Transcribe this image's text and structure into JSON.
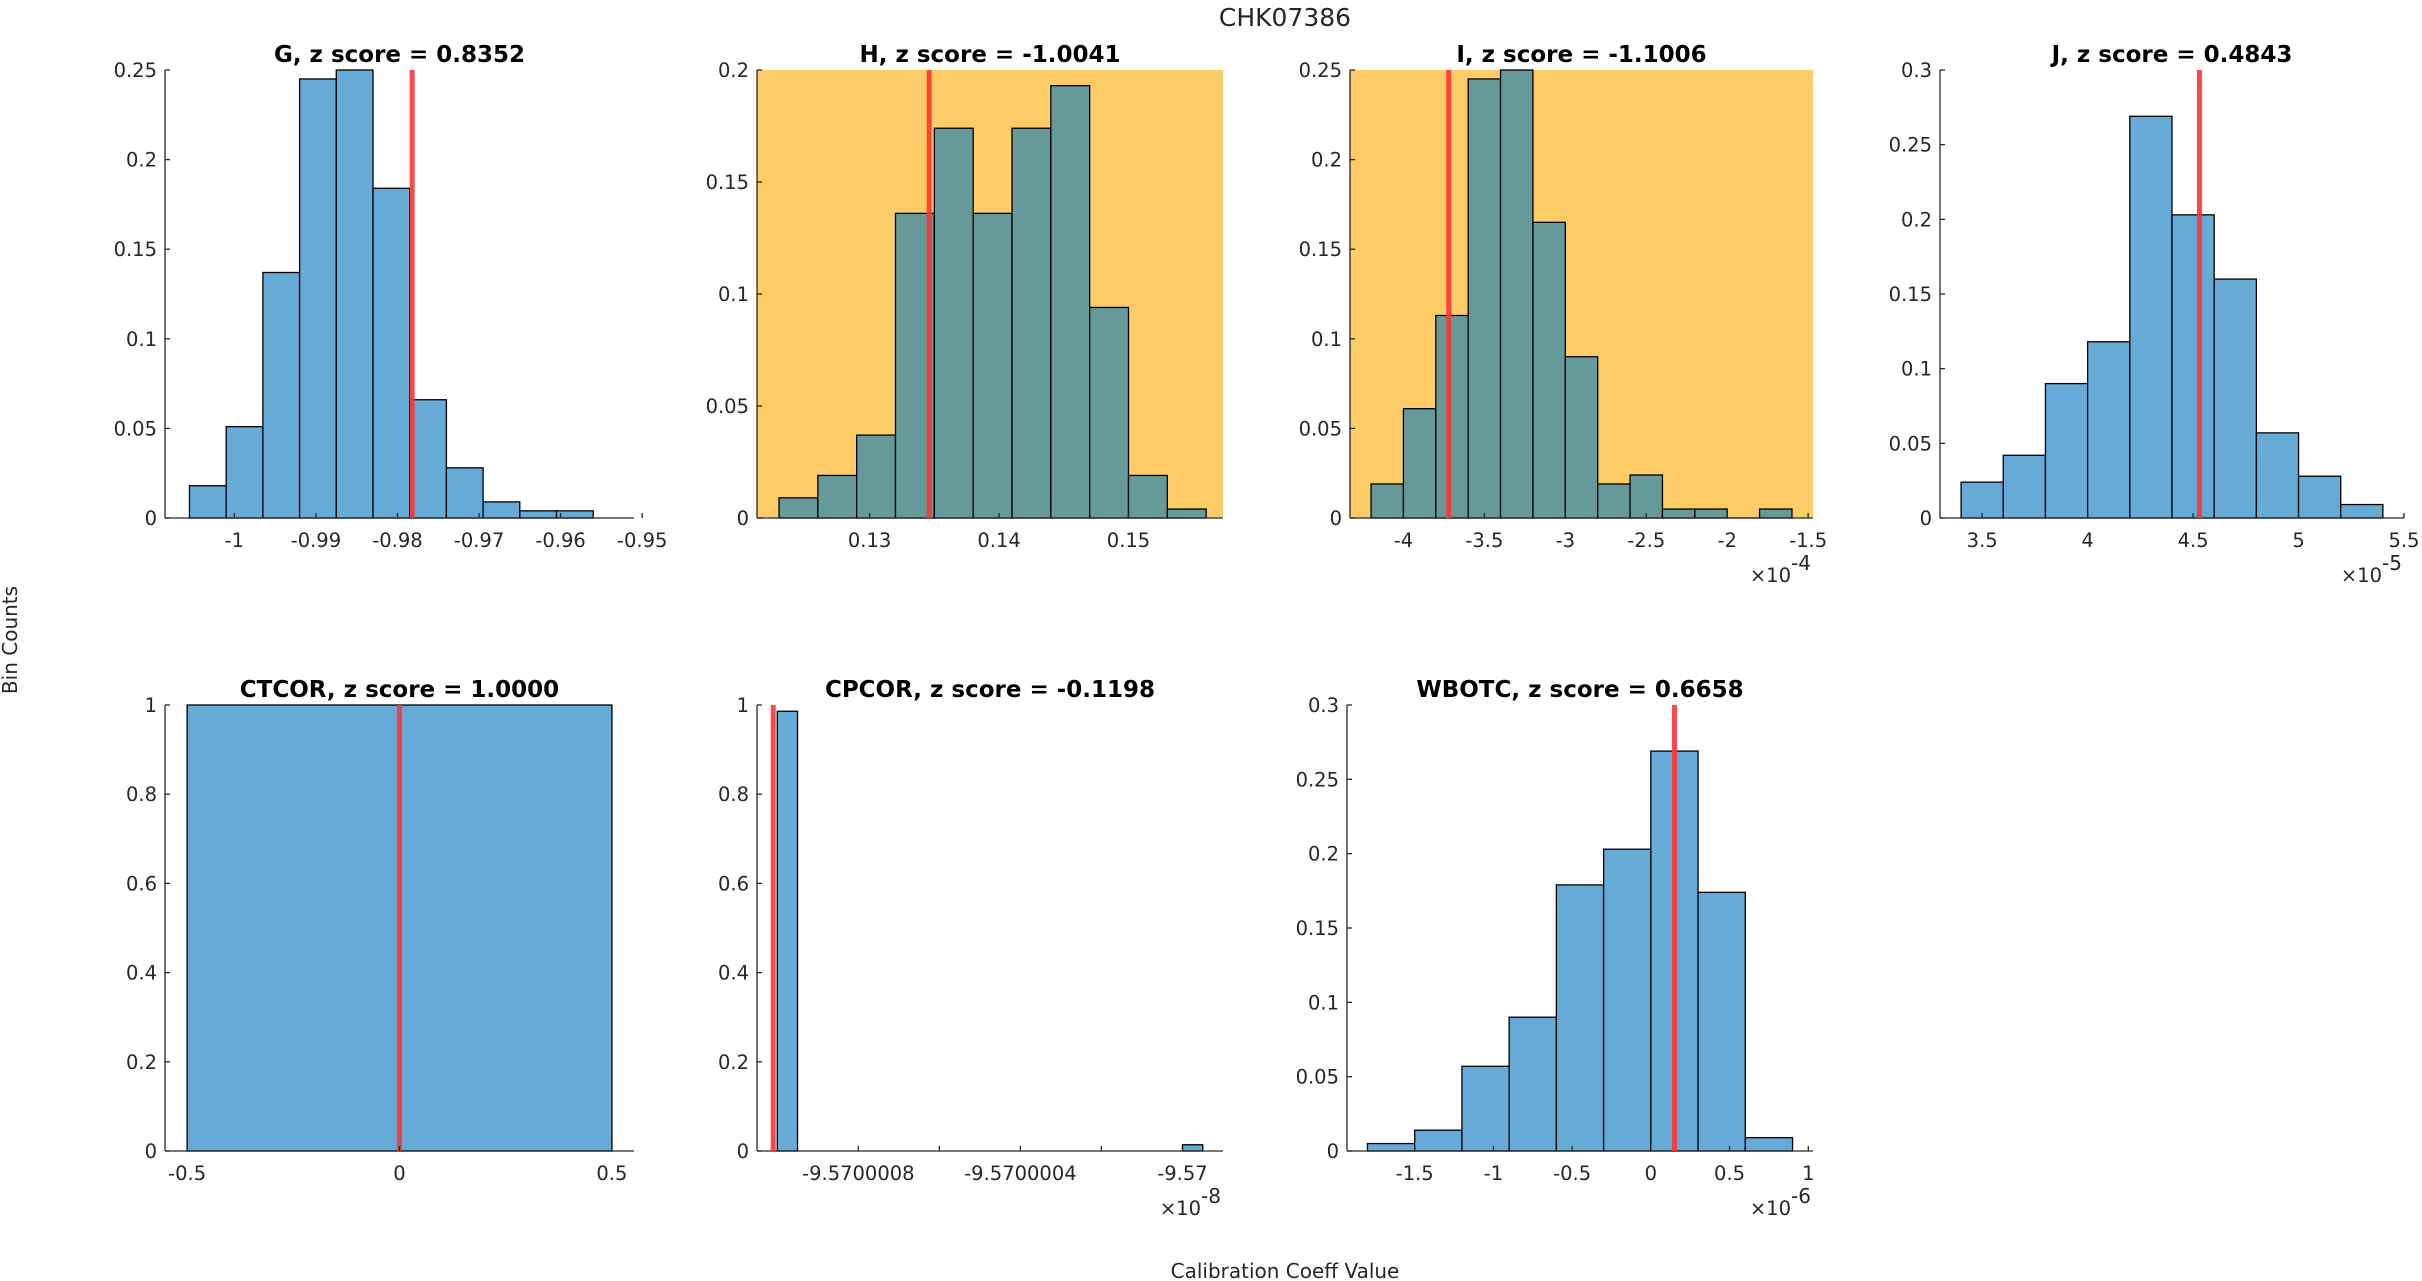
{
  "figure": {
    "title": "CHK07386",
    "ylabel": "Bin Counts",
    "xlabel": "Calibration Coeff Value"
  },
  "colors": {
    "bar_face": "#66AAD7",
    "bar_face_on_highlight": "#669999",
    "bar_edge": "#000000",
    "highlight_background": "#FECC66",
    "marker_line": "#FF3333",
    "axis": "#262626"
  },
  "chart_data": [
    {
      "type": "bar",
      "subtype": "histogram",
      "title": "G, z score = 0.8352",
      "variable": "G",
      "z_score": 0.8352,
      "highlighted": false,
      "bin_edges": [
        -1.0055,
        -1.001,
        -0.9965,
        -0.992,
        -0.9875,
        -0.983,
        -0.9785,
        -0.974,
        -0.9695,
        -0.965,
        -0.9605,
        -0.956
      ],
      "values": [
        0.018,
        0.051,
        0.137,
        0.245,
        0.25,
        0.184,
        0.066,
        0.028,
        0.009,
        0.004,
        0.004
      ],
      "marker_x": -0.9782,
      "xlim": [
        -1.0085,
        -0.951
      ],
      "ylim": [
        0,
        0.25
      ],
      "xticks": [
        -1,
        -0.99,
        -0.98,
        -0.97,
        -0.96,
        -0.95
      ],
      "xtick_labels": [
        "-1",
        "-0.99",
        "-0.98",
        "-0.97",
        "-0.96",
        "-0.95"
      ],
      "yticks": [
        0,
        0.05,
        0.1,
        0.15,
        0.2,
        0.25
      ],
      "ytick_labels": [
        "0",
        "0.05",
        "0.1",
        "0.15",
        "0.2",
        "0.25"
      ],
      "exponent_label": ""
    },
    {
      "type": "bar",
      "subtype": "histogram",
      "title": "H, z score = -1.0041",
      "variable": "H",
      "z_score": -1.0041,
      "highlighted": true,
      "bin_edges": [
        0.123,
        0.126,
        0.129,
        0.132,
        0.135,
        0.138,
        0.141,
        0.144,
        0.147,
        0.15,
        0.153,
        0.156
      ],
      "values": [
        0.009,
        0.019,
        0.037,
        0.136,
        0.174,
        0.136,
        0.174,
        0.193,
        0.094,
        0.019,
        0.004
      ],
      "marker_x": 0.1346,
      "xlim": [
        0.1213,
        0.1573
      ],
      "ylim": [
        0,
        0.2
      ],
      "xticks": [
        0.13,
        0.14,
        0.15
      ],
      "xtick_labels": [
        "0.13",
        "0.14",
        "0.15"
      ],
      "yticks": [
        0,
        0.05,
        0.1,
        0.15,
        0.2
      ],
      "ytick_labels": [
        "0",
        "0.05",
        "0.1",
        "0.15",
        "0.2"
      ],
      "exponent_label": ""
    },
    {
      "type": "bar",
      "subtype": "histogram",
      "title": "I, z score = -1.1006",
      "variable": "I",
      "z_score": -1.1006,
      "highlighted": true,
      "x_scale": "1e-4",
      "bin_edges": [
        -4.2,
        -4.0,
        -3.8,
        -3.6,
        -3.4,
        -3.2,
        -3.0,
        -2.8,
        -2.6,
        -2.4,
        -2.2,
        -2.0,
        -1.8,
        -1.6
      ],
      "values": [
        0.019,
        0.061,
        0.113,
        0.245,
        0.25,
        0.165,
        0.09,
        0.019,
        0.024,
        0.005,
        0.005,
        0.0,
        0.005
      ],
      "marker_x": -3.72,
      "xlim": [
        -4.33,
        -1.47
      ],
      "ylim": [
        0,
        0.25
      ],
      "xticks": [
        -4,
        -3.5,
        -3,
        -2.5,
        -2,
        -1.5
      ],
      "xtick_labels": [
        "-4",
        "-3.5",
        "-3",
        "-2.5",
        "-2",
        "-1.5"
      ],
      "yticks": [
        0,
        0.05,
        0.1,
        0.15,
        0.2,
        0.25
      ],
      "ytick_labels": [
        "0",
        "0.05",
        "0.1",
        "0.15",
        "0.2",
        "0.25"
      ],
      "exponent_label": "×10",
      "exponent": "-4"
    },
    {
      "type": "bar",
      "subtype": "histogram",
      "title": "J, z score = 0.4843",
      "variable": "J",
      "z_score": 0.4843,
      "highlighted": false,
      "x_scale": "1e-5",
      "bin_edges": [
        3.4,
        3.6,
        3.8,
        4.0,
        4.2,
        4.4,
        4.6,
        4.8,
        5.0,
        5.2,
        5.4
      ],
      "values": [
        0.024,
        0.042,
        0.09,
        0.118,
        0.269,
        0.203,
        0.16,
        0.057,
        0.028,
        0.009
      ],
      "marker_x": 4.53,
      "xlim": [
        3.3,
        5.5
      ],
      "ylim": [
        0,
        0.3
      ],
      "xticks": [
        3.5,
        4,
        4.5,
        5,
        5.5
      ],
      "xtick_labels": [
        "3.5",
        "4",
        "4.5",
        "5",
        "5.5"
      ],
      "yticks": [
        0,
        0.05,
        0.1,
        0.15,
        0.2,
        0.25,
        0.3
      ],
      "ytick_labels": [
        "0",
        "0.05",
        "0.1",
        "0.15",
        "0.2",
        "0.25",
        "0.3"
      ],
      "exponent_label": "×10",
      "exponent": "-5"
    },
    {
      "type": "bar",
      "subtype": "histogram",
      "title": "CTCOR, z score = 1.0000",
      "variable": "CTCOR",
      "z_score": 1.0,
      "highlighted": false,
      "bin_edges": [
        -0.5,
        0.5
      ],
      "values": [
        1.0
      ],
      "marker_x": 0,
      "xlim": [
        -0.552,
        0.552
      ],
      "ylim": [
        0,
        1
      ],
      "xticks": [
        -0.5,
        0,
        0.5
      ],
      "xtick_labels": [
        "-0.5",
        "0",
        "0.5"
      ],
      "yticks": [
        0,
        0.2,
        0.4,
        0.6,
        0.8,
        1
      ],
      "ytick_labels": [
        "0",
        "0.2",
        "0.4",
        "0.6",
        "0.8",
        "1"
      ],
      "exponent_label": ""
    },
    {
      "type": "bar",
      "subtype": "histogram",
      "title": "CPCOR, z score = -0.1198",
      "variable": "CPCOR",
      "z_score": -0.1198,
      "highlighted": false,
      "x_scale": "1e-8",
      "bin_edges_segments": [
        [
          -9.570001,
          -9.57000095
        ],
        [
          -9.57,
          -9.56999995
        ]
      ],
      "values": [
        0.986,
        0.014
      ],
      "marker_x": -9.57000101,
      "xlim": [
        -9.57000105,
        -9.5699999
      ],
      "ylim": [
        0,
        1
      ],
      "xticks": [
        -9.5700008,
        -9.5700006,
        -9.5700004,
        -9.5700002,
        -9.57
      ],
      "xtick_labels": [
        "-9.5700008",
        "",
        "-9.5700004",
        "",
        "-9.57"
      ],
      "yticks": [
        0,
        0.2,
        0.4,
        0.6,
        0.8,
        1
      ],
      "ytick_labels": [
        "0",
        "0.2",
        "0.4",
        "0.6",
        "0.8",
        "1"
      ],
      "exponent_label": "×10",
      "exponent": "-8"
    },
    {
      "type": "bar",
      "subtype": "histogram",
      "title": "WBOTC, z score = 0.6658",
      "variable": "WBOTC",
      "z_score": 0.6658,
      "highlighted": false,
      "x_scale": "1e-6",
      "bin_edges": [
        -1.8,
        -1.5,
        -1.2,
        -0.9,
        -0.6,
        -0.3,
        0.0,
        0.3,
        0.6,
        0.9
      ],
      "values": [
        0.005,
        0.014,
        0.057,
        0.09,
        0.179,
        0.203,
        0.269,
        0.174,
        0.009
      ],
      "marker_x": 0.15,
      "xlim": [
        -1.93,
        1.03
      ],
      "ylim": [
        0,
        0.3
      ],
      "xticks": [
        -1.5,
        -1,
        -0.5,
        0,
        0.5,
        1
      ],
      "xtick_labels": [
        "-1.5",
        "-1",
        "-0.5",
        "0",
        "0.5",
        "1"
      ],
      "yticks": [
        0,
        0.05,
        0.1,
        0.15,
        0.2,
        0.25,
        0.3
      ],
      "ytick_labels": [
        "0",
        "0.05",
        "0.1",
        "0.15",
        "0.2",
        "0.25",
        "0.3"
      ],
      "exponent_label": "×10",
      "exponent": "-6"
    }
  ]
}
